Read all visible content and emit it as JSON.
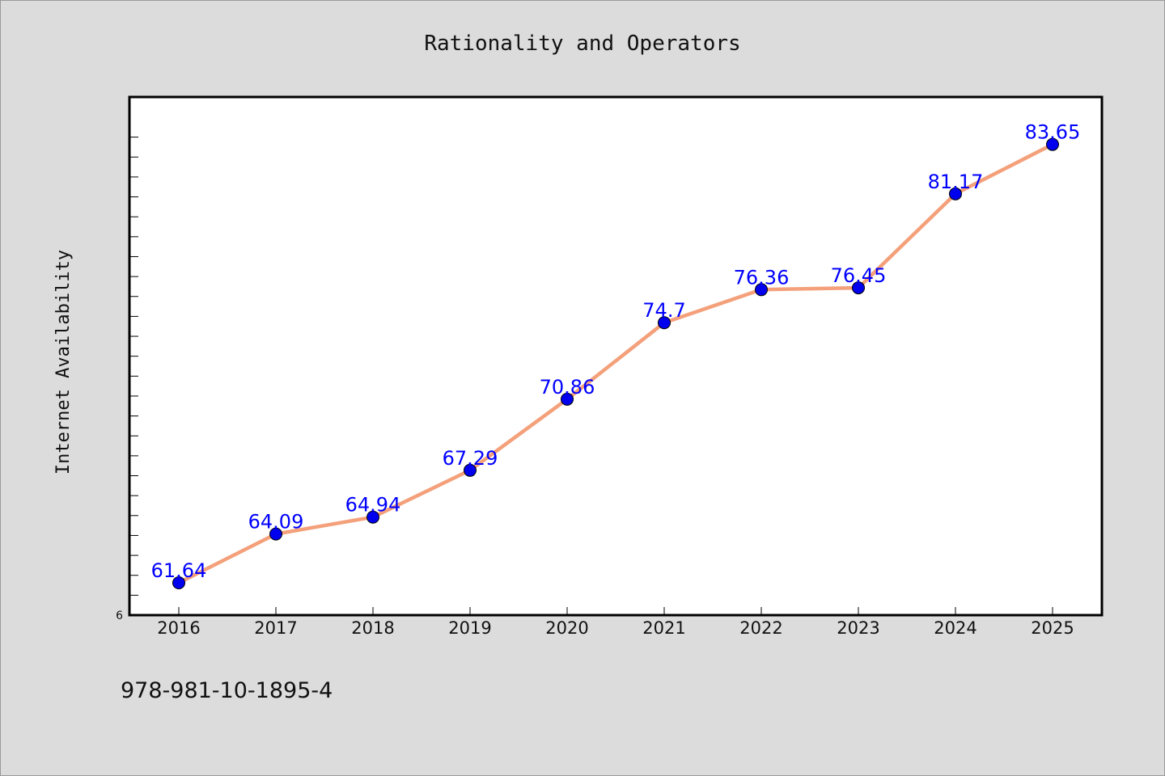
{
  "chart_data": {
    "type": "line",
    "title": "Rationality and Operators",
    "xlabel": "",
    "ylabel": "Internet Availability",
    "categories": [
      "2016",
      "2017",
      "2018",
      "2019",
      "2020",
      "2021",
      "2022",
      "2023",
      "2024",
      "2025"
    ],
    "series": [
      {
        "values": [
          61.64,
          64.09,
          64.94,
          67.29,
          70.86,
          74.7,
          76.36,
          76.45,
          81.17,
          83.65
        ],
        "labels": [
          "61.64",
          "64.09",
          "64.94",
          "67.29",
          "70.86",
          "74.7",
          "76.36",
          "76.45",
          "81.17",
          "83.65"
        ],
        "line_color": "#f4a07a",
        "marker_color": "#0000ee"
      }
    ],
    "ytick_labels": [
      "6"
    ],
    "ylim": [
      60,
      86
    ],
    "grid": false,
    "legend": "none"
  },
  "footer_text": "978-981-10-1895-4",
  "colors": {
    "background": "#dcdcdc",
    "plot_background": "#ffffff",
    "label_color": "#0000ff"
  }
}
